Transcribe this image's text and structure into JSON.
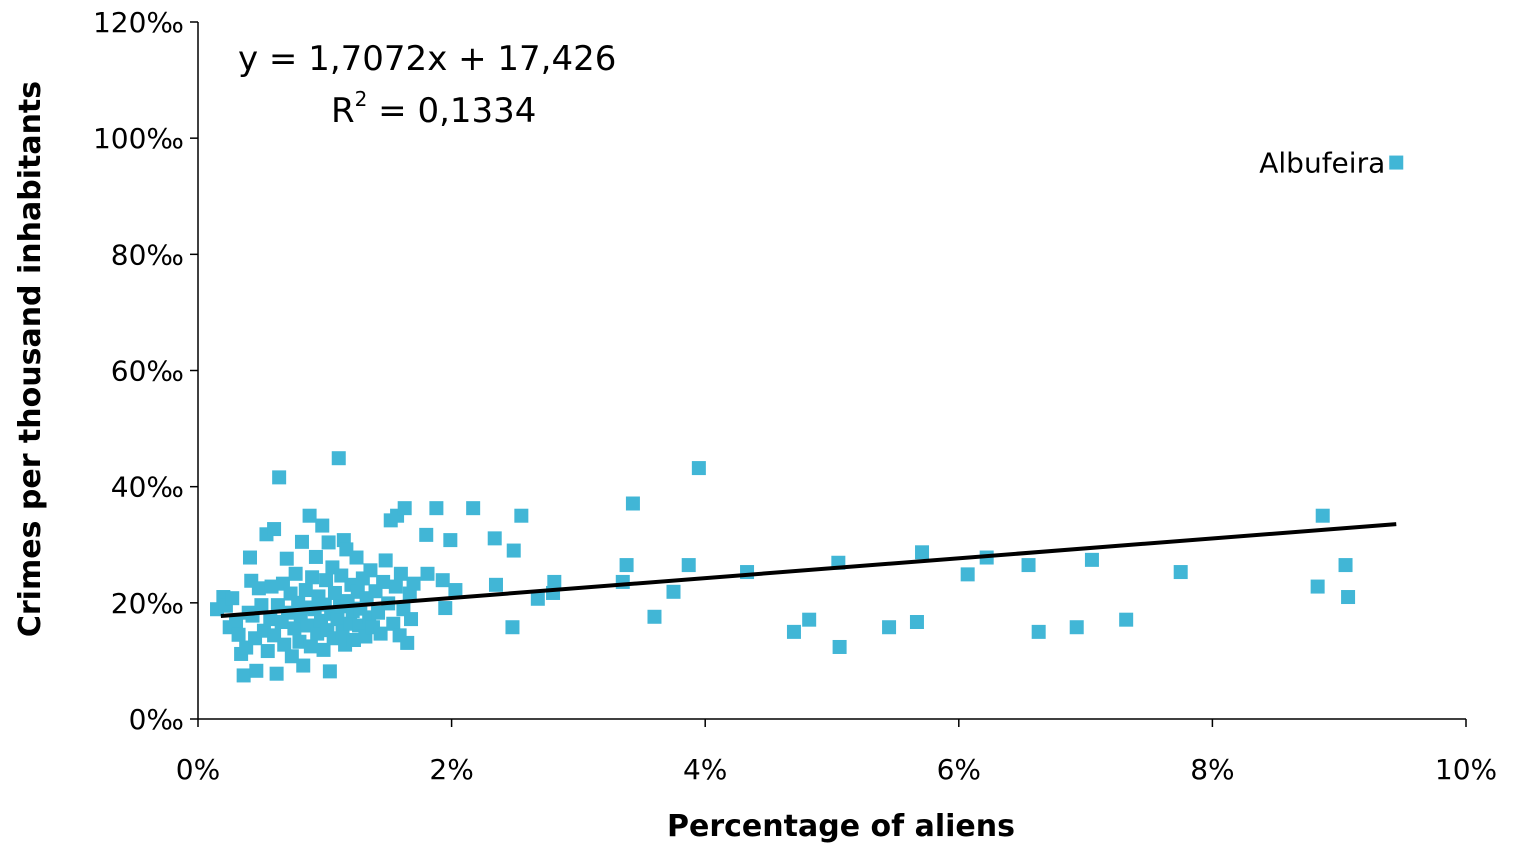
{
  "chart_data": {
    "type": "scatter",
    "title": "",
    "xlabel": "Percentage of aliens",
    "ylabel": "Crimes per thousand inhabitants",
    "xlim": [
      0,
      10
    ],
    "ylim": [
      0,
      120
    ],
    "x_ticks": [
      "0%",
      "2%",
      "4%",
      "6%",
      "8%",
      "10%"
    ],
    "y_ticks": [
      "0%o",
      "20%o",
      "40%o",
      "60%o",
      "80%o",
      "100%o",
      "120%o"
    ],
    "grid": false,
    "marker_color": "#41b6d6",
    "trendline_color": "#000000",
    "trendline": {
      "slope": 1.7072,
      "intercept": 17.426,
      "x_range": [
        0.18,
        9.45
      ],
      "equation_line1": "y = 1,7072x + 17,426",
      "r2_prefix": "R",
      "r2_sup": "2",
      "r2_suffix": " = 0,1334"
    },
    "annotation": {
      "text": "Albufeira",
      "x": 9.45,
      "y": 95.8
    },
    "series": [
      {
        "points": [
          [
            0.15,
            18.9
          ],
          [
            0.2,
            21.0
          ],
          [
            0.22,
            19.5
          ],
          [
            0.25,
            15.8
          ],
          [
            0.27,
            20.8
          ],
          [
            0.3,
            16.5
          ],
          [
            0.32,
            14.5
          ],
          [
            0.34,
            11.2
          ],
          [
            0.36,
            7.5
          ],
          [
            0.38,
            12.3
          ],
          [
            0.4,
            18.3
          ],
          [
            0.41,
            27.8
          ],
          [
            0.42,
            23.8
          ],
          [
            0.43,
            17.8
          ],
          [
            0.45,
            13.9
          ],
          [
            0.46,
            8.3
          ],
          [
            0.48,
            22.5
          ],
          [
            0.5,
            19.6
          ],
          [
            0.52,
            15.2
          ],
          [
            0.54,
            31.8
          ],
          [
            0.55,
            11.7
          ],
          [
            0.57,
            17.2
          ],
          [
            0.58,
            22.8
          ],
          [
            0.6,
            14.4
          ],
          [
            0.6,
            32.7
          ],
          [
            0.62,
            7.8
          ],
          [
            0.63,
            19.6
          ],
          [
            0.64,
            41.6
          ],
          [
            0.66,
            16.7
          ],
          [
            0.67,
            23.3
          ],
          [
            0.68,
            12.8
          ],
          [
            0.7,
            27.6
          ],
          [
            0.71,
            18.3
          ],
          [
            0.73,
            21.6
          ],
          [
            0.74,
            10.8
          ],
          [
            0.76,
            15.6
          ],
          [
            0.77,
            25.0
          ],
          [
            0.79,
            20.0
          ],
          [
            0.8,
            13.3
          ],
          [
            0.81,
            17.8
          ],
          [
            0.82,
            30.5
          ],
          [
            0.83,
            9.2
          ],
          [
            0.85,
            22.2
          ],
          [
            0.86,
            16.1
          ],
          [
            0.87,
            19.2
          ],
          [
            0.88,
            35.0
          ],
          [
            0.89,
            12.5
          ],
          [
            0.9,
            24.4
          ],
          [
            0.92,
            18.9
          ],
          [
            0.93,
            27.9
          ],
          [
            0.94,
            14.7
          ],
          [
            0.95,
            21.1
          ],
          [
            0.97,
            16.9
          ],
          [
            0.98,
            33.3
          ],
          [
            0.99,
            11.9
          ],
          [
            1.0,
            19.7
          ],
          [
            1.01,
            23.9
          ],
          [
            1.02,
            15.3
          ],
          [
            1.03,
            30.4
          ],
          [
            1.04,
            8.2
          ],
          [
            1.05,
            18.1
          ],
          [
            1.06,
            26.1
          ],
          [
            1.07,
            13.9
          ],
          [
            1.08,
            21.7
          ],
          [
            1.1,
            17.2
          ],
          [
            1.11,
            44.9
          ],
          [
            1.12,
            19.4
          ],
          [
            1.13,
            24.7
          ],
          [
            1.14,
            15.0
          ],
          [
            1.15,
            30.8
          ],
          [
            1.16,
            12.8
          ],
          [
            1.17,
            29.2
          ],
          [
            1.18,
            20.3
          ],
          [
            1.2,
            16.4
          ],
          [
            1.21,
            23.1
          ],
          [
            1.22,
            18.6
          ],
          [
            1.23,
            13.6
          ],
          [
            1.25,
            27.8
          ],
          [
            1.26,
            21.9
          ],
          [
            1.27,
            16.1
          ],
          [
            1.28,
            19.0
          ],
          [
            1.3,
            24.2
          ],
          [
            1.32,
            14.2
          ],
          [
            1.33,
            20.8
          ],
          [
            1.35,
            17.5
          ],
          [
            1.36,
            25.6
          ],
          [
            1.38,
            15.8
          ],
          [
            1.4,
            22.0
          ],
          [
            1.42,
            18.3
          ],
          [
            1.44,
            14.7
          ],
          [
            1.46,
            23.6
          ],
          [
            1.48,
            27.3
          ],
          [
            1.5,
            19.9
          ],
          [
            1.52,
            34.2
          ],
          [
            1.54,
            16.4
          ],
          [
            1.56,
            22.8
          ],
          [
            1.57,
            35.0
          ],
          [
            1.59,
            14.4
          ],
          [
            1.6,
            25.0
          ],
          [
            1.62,
            18.9
          ],
          [
            1.63,
            36.3
          ],
          [
            1.65,
            13.1
          ],
          [
            1.67,
            21.6
          ],
          [
            1.68,
            17.2
          ],
          [
            1.7,
            23.3
          ],
          [
            1.8,
            31.7
          ],
          [
            1.81,
            25.0
          ],
          [
            1.88,
            36.3
          ],
          [
            1.93,
            23.9
          ],
          [
            1.95,
            19.1
          ],
          [
            1.99,
            30.8
          ],
          [
            2.03,
            22.2
          ],
          [
            2.17,
            36.3
          ],
          [
            2.34,
            31.1
          ],
          [
            2.35,
            23.1
          ],
          [
            2.48,
            15.8
          ],
          [
            2.49,
            29.0
          ],
          [
            2.55,
            35.0
          ],
          [
            2.68,
            20.7
          ],
          [
            2.8,
            21.7
          ],
          [
            2.81,
            23.6
          ],
          [
            3.35,
            23.6
          ],
          [
            3.38,
            26.5
          ],
          [
            3.43,
            37.1
          ],
          [
            3.6,
            17.6
          ],
          [
            3.75,
            21.9
          ],
          [
            3.87,
            26.5
          ],
          [
            3.95,
            43.2
          ],
          [
            4.33,
            25.3
          ],
          [
            4.7,
            15.0
          ],
          [
            4.82,
            17.1
          ],
          [
            5.05,
            26.9
          ],
          [
            5.06,
            12.4
          ],
          [
            5.45,
            15.8
          ],
          [
            5.67,
            16.7
          ],
          [
            5.71,
            28.7
          ],
          [
            6.07,
            24.9
          ],
          [
            6.22,
            27.8
          ],
          [
            6.55,
            26.5
          ],
          [
            6.63,
            15.0
          ],
          [
            6.93,
            15.8
          ],
          [
            7.05,
            27.4
          ],
          [
            7.32,
            17.1
          ],
          [
            7.75,
            25.3
          ],
          [
            8.83,
            22.8
          ],
          [
            8.87,
            35.0
          ],
          [
            9.05,
            26.5
          ],
          [
            9.07,
            21.0
          ],
          [
            9.45,
            95.8
          ]
        ]
      }
    ]
  }
}
